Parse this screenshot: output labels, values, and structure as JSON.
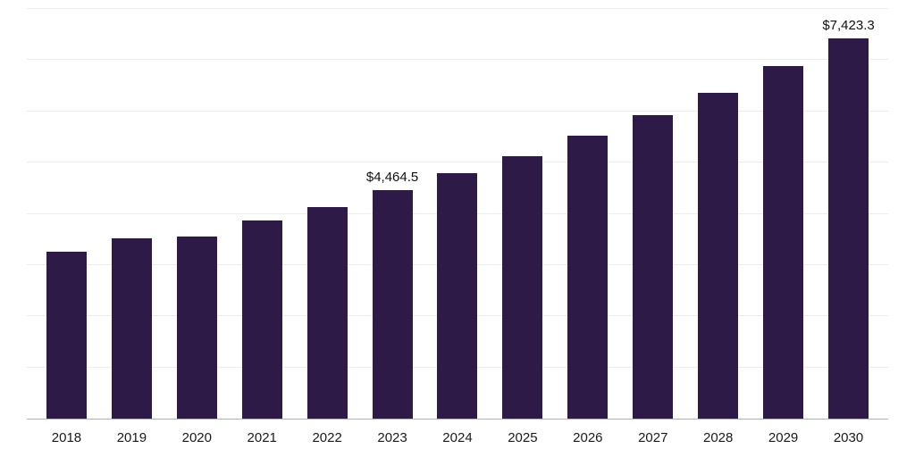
{
  "chart_data": {
    "type": "bar",
    "title": "",
    "xlabel": "",
    "ylabel": "",
    "categories": [
      "2018",
      "2019",
      "2020",
      "2021",
      "2022",
      "2023",
      "2024",
      "2025",
      "2026",
      "2027",
      "2028",
      "2029",
      "2030"
    ],
    "values": [
      3260,
      3515,
      3550,
      3870,
      4130,
      4464.5,
      4790,
      5130,
      5520,
      5930,
      6370,
      6880,
      7423.3
    ],
    "annotations": [
      {
        "category": "2023",
        "index": 5,
        "text": "$4,464.5"
      },
      {
        "category": "2030",
        "index": 12,
        "text": "$7,423.3"
      }
    ],
    "ylim": [
      0,
      8000
    ],
    "grid_step": 1000,
    "grid": true,
    "legend_position": "none",
    "bar_color": "#2e1a47",
    "gridline_color": "#ededed",
    "axis_color": "#b3b3b3",
    "label_color": "#1a1a1a"
  }
}
